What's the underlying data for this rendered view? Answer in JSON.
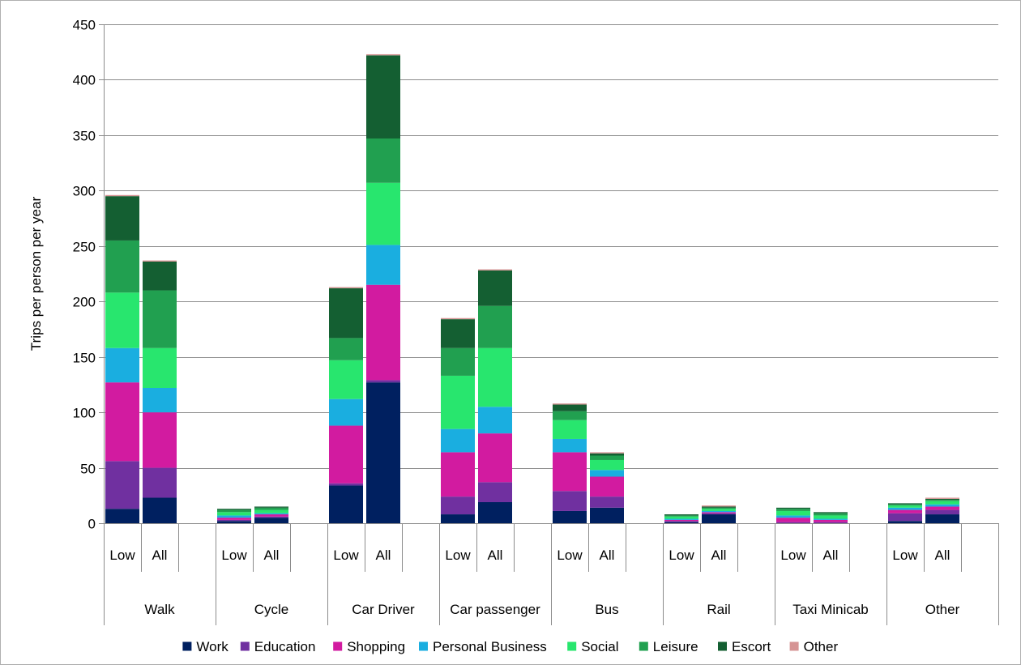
{
  "chart_data": {
    "type": "bar",
    "stacked": true,
    "title": "",
    "xlabel": "",
    "ylabel": "Trips per person per year",
    "ylim": [
      0,
      450
    ],
    "yticks": [
      0,
      50,
      100,
      150,
      200,
      250,
      300,
      350,
      400,
      450
    ],
    "grid": true,
    "legend_position": "bottom",
    "groups": [
      "Walk",
      "Cycle",
      "Car Driver",
      "Car passenger",
      "Bus",
      "Rail",
      "Taxi Minicab",
      "Other"
    ],
    "subcategories": [
      "Low",
      "All"
    ],
    "series": [
      {
        "name": "Work",
        "color": "#002060",
        "values": [
          [
            13,
            23
          ],
          [
            2,
            5
          ],
          [
            34,
            127
          ],
          [
            8,
            19
          ],
          [
            11,
            14
          ],
          [
            1,
            8
          ],
          [
            0,
            0
          ],
          [
            2,
            8
          ]
        ]
      },
      {
        "name": "Education",
        "color": "#7030A0",
        "values": [
          [
            43,
            27
          ],
          [
            1,
            1
          ],
          [
            2,
            2
          ],
          [
            16,
            18
          ],
          [
            18,
            10
          ],
          [
            1,
            1
          ],
          [
            1,
            1
          ],
          [
            7,
            4
          ]
        ]
      },
      {
        "name": "Shopping",
        "color": "#D21BA0",
        "values": [
          [
            71,
            50
          ],
          [
            2,
            2
          ],
          [
            52,
            86
          ],
          [
            40,
            44
          ],
          [
            35,
            18
          ],
          [
            1,
            1
          ],
          [
            4,
            2
          ],
          [
            3,
            3
          ]
        ]
      },
      {
        "name": "Personal Business",
        "color": "#1AAEE0",
        "values": [
          [
            31,
            22
          ],
          [
            2,
            1
          ],
          [
            24,
            36
          ],
          [
            21,
            24
          ],
          [
            12,
            6
          ],
          [
            1,
            1
          ],
          [
            2,
            1
          ],
          [
            2,
            2
          ]
        ]
      },
      {
        "name": "Social",
        "color": "#28E66E",
        "values": [
          [
            50,
            36
          ],
          [
            3,
            3
          ],
          [
            35,
            56
          ],
          [
            48,
            53
          ],
          [
            17,
            9
          ],
          [
            2,
            2
          ],
          [
            4,
            3
          ],
          [
            2,
            3
          ]
        ]
      },
      {
        "name": "Leisure",
        "color": "#21A050",
        "values": [
          [
            47,
            52
          ],
          [
            2,
            2
          ],
          [
            20,
            40
          ],
          [
            25,
            38
          ],
          [
            8,
            4
          ],
          [
            1,
            1
          ],
          [
            2,
            2
          ],
          [
            1,
            1
          ]
        ]
      },
      {
        "name": "Escort",
        "color": "#145F32",
        "values": [
          [
            40,
            26
          ],
          [
            1,
            1
          ],
          [
            45,
            75
          ],
          [
            26,
            32
          ],
          [
            6,
            2
          ],
          [
            1,
            1
          ],
          [
            1,
            1
          ],
          [
            1,
            1
          ]
        ]
      },
      {
        "name": "Other",
        "color": "#D69494",
        "values": [
          [
            1,
            1
          ],
          [
            0,
            0
          ],
          [
            1,
            1
          ],
          [
            1,
            1
          ],
          [
            1,
            1
          ],
          [
            0,
            1
          ],
          [
            0,
            0
          ],
          [
            0,
            1
          ]
        ]
      }
    ]
  }
}
